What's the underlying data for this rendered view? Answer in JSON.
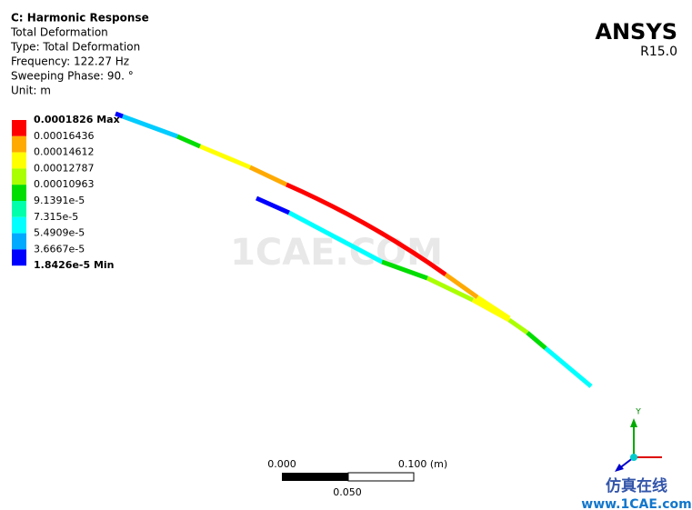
{
  "header": {
    "title": "C: Harmonic Response",
    "lines": [
      "Total Deformation",
      "Type: Total Deformation",
      "Frequency: 122.27 Hz",
      "Sweeping Phase: 90. °",
      "Unit: m"
    ]
  },
  "legend": {
    "labels": [
      "0.0001826 Max",
      "0.00016436",
      "0.00014612",
      "0.00012787",
      "0.00010963",
      "9.1391e-5",
      "7.315e-5",
      "5.4909e-5",
      "3.6667e-5",
      "1.8426e-5 Min"
    ],
    "colors": [
      "#ff0000",
      "#ffaa00",
      "#ffff00",
      "#aaff00",
      "#00dd00",
      "#00ffaa",
      "#00ffff",
      "#00aaff",
      "#0000ff"
    ]
  },
  "logo": {
    "name": "ANSYS",
    "version": "R15.0"
  },
  "scale": {
    "left": "0.000",
    "right": "0.100 (m)",
    "middle": "0.050"
  },
  "triad": {
    "axis": "Y"
  },
  "watermark": {
    "center": "1CAE.COM",
    "logo": "仿真在线",
    "url": "www.1CAE.com"
  }
}
